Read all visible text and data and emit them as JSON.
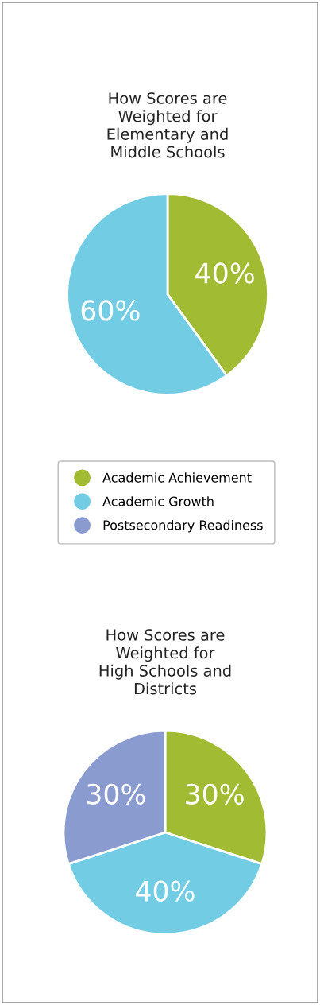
{
  "chart_data": [
    {
      "type": "pie",
      "title": "How Scores are\nWeighted for\nElementary and\nMiddle Schools",
      "categories": [
        null,
        null
      ],
      "values": [
        40,
        60
      ],
      "colors": [
        "#a1bc33",
        "#72cde4"
      ],
      "value_labels": [
        "40%",
        "60%"
      ]
    },
    {
      "type": "pie",
      "title": "How Scores are\nWeighted for\nHigh Schools and\nDistricts",
      "categories": [
        "Academic Achievement",
        "Academic Growth",
        "Postsecondary Readiness"
      ],
      "values": [
        30,
        40,
        30
      ],
      "colors": [
        "#a1bc33",
        "#72cde4",
        "#8a9bd0"
      ],
      "value_labels": [
        "30%",
        "40%",
        "30%"
      ],
      "legend": "top"
    }
  ]
}
